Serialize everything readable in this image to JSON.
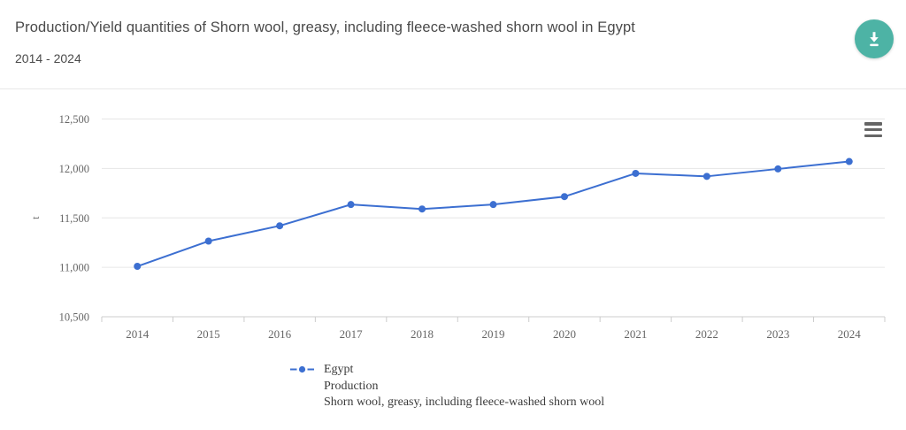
{
  "header": {
    "title": "Production/Yield quantities of Shorn wool, greasy, including fleece-washed shorn wool in Egypt",
    "subtitle": "2014 - 2024"
  },
  "toolbar": {
    "download_button_color": "#4db3a5"
  },
  "chart_data": {
    "type": "line",
    "title": "",
    "categories": [
      "2014",
      "2015",
      "2016",
      "2017",
      "2018",
      "2019",
      "2020",
      "2021",
      "2022",
      "2023",
      "2024"
    ],
    "series": [
      {
        "name": "Egypt",
        "element": "Production",
        "item": "Shorn wool, greasy, including fleece-washed shorn wool",
        "values": [
          11010,
          11265,
          11420,
          11635,
          11590,
          11635,
          11715,
          11950,
          11920,
          11995,
          12070
        ],
        "color": "#3c6fd1"
      }
    ],
    "xlabel": "",
    "ylabel": "t",
    "ylim": [
      10500,
      12500
    ],
    "ytick_step": 500,
    "yticks": [
      10500,
      11000,
      11500,
      12000,
      12500
    ],
    "grid": true,
    "legend_position": "bottom",
    "legend_lines": [
      "Egypt",
      "Production",
      "Shorn wool, greasy, including fleece-washed shorn wool"
    ]
  },
  "colors": {
    "grid": "#e6e6e6",
    "axis": "#cccccc",
    "axis_text": "#666666",
    "menu_icon": "#666666"
  }
}
